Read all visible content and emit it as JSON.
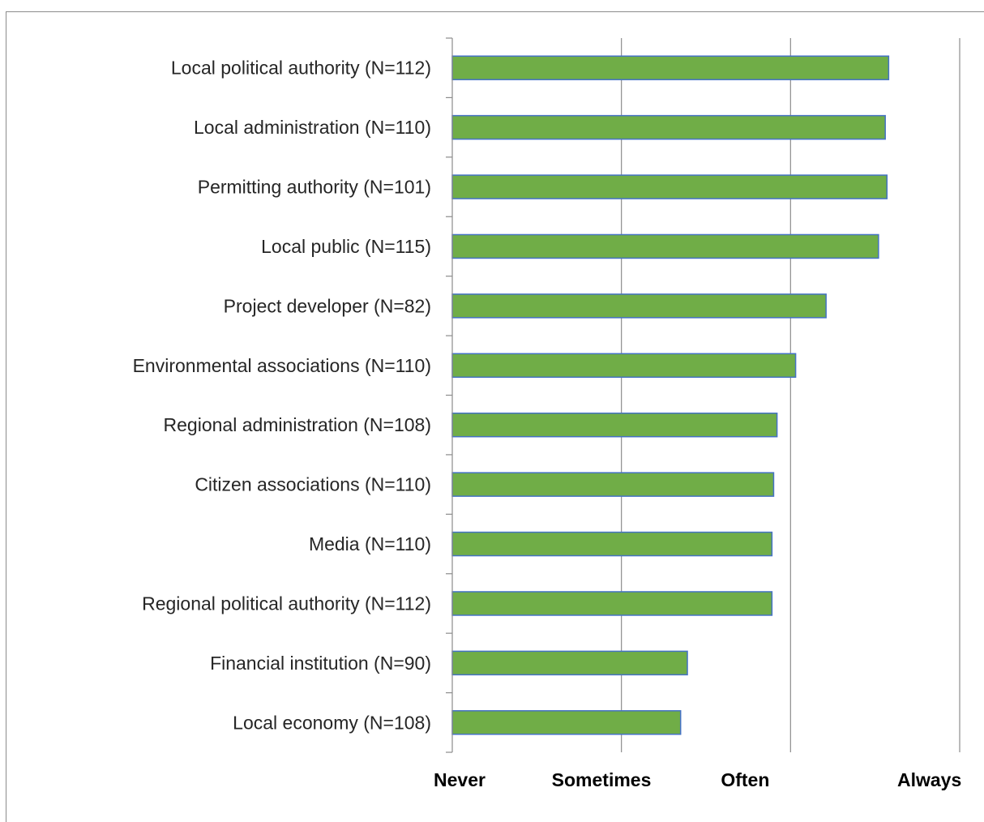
{
  "chart_data": {
    "type": "bar",
    "orientation": "horizontal",
    "categories": [
      "Local political authority (N=112)",
      "Local administration (N=110)",
      "Permitting authority (N=101)",
      "Local public (N=115)",
      "Project developer (N=82)",
      "Environmental associations (N=110)",
      "Regional administration (N=108)",
      "Citizen associations (N=110)",
      "Media (N=110)",
      "Regional political authority (N=112)",
      "Financial institution (N=90)",
      "Local economy (N=108)"
    ],
    "values": [
      3.58,
      3.56,
      3.57,
      3.52,
      3.21,
      3.03,
      2.92,
      2.9,
      2.89,
      2.89,
      2.39,
      2.35
    ],
    "xlim": [
      1,
      4
    ],
    "x_tick_values": [
      1,
      2,
      3,
      4
    ],
    "x_tick_labels": [
      "Never",
      "Sometimes",
      "Often",
      "Always"
    ],
    "title": "",
    "xlabel": "",
    "ylabel": "",
    "grid": "vertical",
    "legend": "none",
    "colors": {
      "bar_fill": "#70ad47",
      "bar_border": "#4472c4",
      "gridline": "#8c8c8c"
    }
  }
}
